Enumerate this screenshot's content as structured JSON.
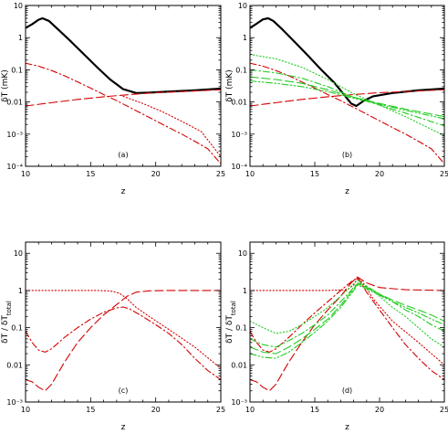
{
  "chart_data": [
    {
      "panel": "(a)",
      "type": "line",
      "ylabel": "δT  (mK)",
      "xlabel": "z",
      "xlim": [
        10,
        25
      ],
      "ylim": [
        0.0001,
        10
      ],
      "xscale": "linear",
      "yscale": "log",
      "xticks": [
        "10",
        "15",
        "20",
        "25"
      ],
      "yticks": [
        "10⁻⁴",
        "10⁻³",
        "0.01",
        "0.1",
        "1",
        "10"
      ],
      "series": [
        {
          "color": "#000000",
          "style": "solid",
          "x": [
            10,
            10.5,
            11,
            11.3,
            11.8,
            12.5,
            13.5,
            14.5,
            15.5,
            16.5,
            17.5,
            18.5,
            19.5,
            21,
            23,
            25
          ],
          "y": [
            2,
            2.6,
            3.6,
            4.0,
            3.3,
            1.8,
            0.75,
            0.3,
            0.12,
            0.05,
            0.025,
            0.019,
            0.0195,
            0.021,
            0.023,
            0.026
          ]
        },
        {
          "color": "#d40000",
          "style": "dashed",
          "x": [
            10,
            12,
            14,
            16,
            18,
            20,
            22,
            25
          ],
          "y": [
            0.0075,
            0.0095,
            0.012,
            0.0145,
            0.017,
            0.0195,
            0.021,
            0.024
          ]
        },
        {
          "color": "#d40000",
          "style": "dashdot",
          "x": [
            10,
            11,
            12,
            13,
            14,
            15,
            16,
            17,
            18,
            19,
            20,
            21,
            22,
            23,
            24,
            25
          ],
          "y": [
            0.16,
            0.13,
            0.095,
            0.065,
            0.042,
            0.027,
            0.017,
            0.011,
            0.0068,
            0.0042,
            0.0026,
            0.0016,
            0.001,
            0.0006,
            0.00035,
            0.00012
          ]
        },
        {
          "color": "#d40000",
          "style": "dotted",
          "x": [
            17.5,
            19,
            20.5,
            22,
            23.5,
            25
          ],
          "y": [
            0.015,
            0.009,
            0.005,
            0.0025,
            0.0012,
            0.0002
          ]
        }
      ]
    },
    {
      "panel": "(b)",
      "type": "line",
      "ylabel": "δT  (mK)",
      "xlabel": "z",
      "xlim": [
        10,
        25
      ],
      "ylim": [
        0.0001,
        10
      ],
      "xscale": "linear",
      "yscale": "log",
      "xticks": [
        "10",
        "15",
        "20",
        "25"
      ],
      "yticks": [
        "10⁻⁴",
        "10⁻³",
        "0.01",
        "0.1",
        "1",
        "10"
      ],
      "series": [
        {
          "color": "#000000",
          "style": "solid",
          "x": [
            10,
            10.5,
            11,
            11.4,
            11.8,
            12.5,
            13.5,
            14.5,
            15.5,
            16.5,
            17.2,
            17.8,
            18.2,
            18.8,
            19.5,
            21,
            23,
            25
          ],
          "y": [
            2,
            2.7,
            3.7,
            4.0,
            3.3,
            1.8,
            0.7,
            0.27,
            0.1,
            0.04,
            0.018,
            0.009,
            0.0075,
            0.011,
            0.015,
            0.019,
            0.023,
            0.026
          ]
        },
        {
          "color": "#d40000",
          "style": "dashed",
          "x": [
            10,
            12,
            14,
            16,
            18,
            20,
            22,
            25
          ],
          "y": [
            0.0075,
            0.0095,
            0.012,
            0.0145,
            0.017,
            0.0195,
            0.021,
            0.024
          ]
        },
        {
          "color": "#d40000",
          "style": "dashdot",
          "x": [
            10,
            11,
            12,
            13,
            14,
            15,
            16,
            17,
            18,
            19,
            20,
            21,
            22,
            23,
            24,
            25
          ],
          "y": [
            0.16,
            0.13,
            0.095,
            0.065,
            0.042,
            0.027,
            0.017,
            0.011,
            0.0068,
            0.0042,
            0.0026,
            0.0016,
            0.001,
            0.0006,
            0.00035,
            0.00012
          ]
        },
        {
          "color": "#22cc22",
          "style": "dotted",
          "x": [
            10,
            12,
            14,
            16,
            18,
            19,
            20,
            22,
            25
          ],
          "y": [
            0.3,
            0.22,
            0.12,
            0.05,
            0.018,
            0.012,
            0.008,
            0.0035,
            0.0009
          ]
        },
        {
          "color": "#22cc22",
          "style": "dashdot",
          "x": [
            10,
            12,
            14,
            16,
            18,
            20,
            22,
            25
          ],
          "y": [
            0.1,
            0.08,
            0.055,
            0.03,
            0.014,
            0.008,
            0.0045,
            0.0018
          ]
        },
        {
          "color": "#22cc22",
          "style": "dashed",
          "x": [
            10,
            12,
            14,
            16,
            18,
            20,
            22,
            25
          ],
          "y": [
            0.06,
            0.05,
            0.038,
            0.024,
            0.014,
            0.009,
            0.006,
            0.0035
          ]
        },
        {
          "color": "#22cc22",
          "style": "dashdotdot",
          "x": [
            10,
            12,
            14,
            16,
            18,
            20,
            22,
            25
          ],
          "y": [
            0.045,
            0.038,
            0.03,
            0.021,
            0.013,
            0.0085,
            0.0055,
            0.003
          ]
        }
      ]
    },
    {
      "panel": "(c)",
      "type": "line",
      "ylabel": "δT  / δT",
      "ylabel_sub": "total",
      "xlabel": "z",
      "xlim": [
        10,
        25
      ],
      "ylim": [
        0.001,
        20
      ],
      "xscale": "linear",
      "yscale": "log",
      "xticks": [
        "10",
        "15",
        "20",
        "25"
      ],
      "yticks": [
        "10⁻³",
        "0.01",
        "0.1",
        "1",
        "10"
      ],
      "series": [
        {
          "color": "#d40000",
          "style": "dotted",
          "x": [
            10,
            12,
            14,
            15.5,
            16.5,
            17.2,
            17.8,
            18.5,
            19.5,
            21,
            23,
            25
          ],
          "y": [
            1,
            1,
            1,
            1,
            0.97,
            0.85,
            0.6,
            0.35,
            0.2,
            0.09,
            0.03,
            0.008
          ]
        },
        {
          "color": "#d40000",
          "style": "dashed",
          "x": [
            10,
            10.5,
            11,
            11.5,
            12,
            13,
            14,
            15,
            16,
            17,
            17.8,
            18.5,
            19.5,
            21,
            23,
            25
          ],
          "y": [
            0.004,
            0.0035,
            0.0025,
            0.002,
            0.003,
            0.012,
            0.04,
            0.1,
            0.22,
            0.42,
            0.7,
            0.9,
            0.98,
            1,
            1,
            1
          ]
        },
        {
          "color": "#d40000",
          "style": "dashdot",
          "x": [
            10,
            10.5,
            11,
            11.5,
            12,
            13,
            14,
            15,
            16,
            17,
            17.5,
            18,
            19,
            20,
            21,
            22,
            23,
            24,
            25
          ],
          "y": [
            0.08,
            0.04,
            0.025,
            0.022,
            0.027,
            0.055,
            0.1,
            0.17,
            0.26,
            0.34,
            0.36,
            0.32,
            0.2,
            0.12,
            0.07,
            0.035,
            0.015,
            0.007,
            0.004
          ]
        }
      ]
    },
    {
      "panel": "(d)",
      "type": "line",
      "ylabel": "δT  / δT",
      "ylabel_sub": "total",
      "xlabel": "z",
      "xlim": [
        10,
        25
      ],
      "ylim": [
        0.001,
        20
      ],
      "xscale": "linear",
      "yscale": "log",
      "xticks": [
        "10",
        "15",
        "20",
        "25"
      ],
      "yticks": [
        "10⁻³",
        "0.01",
        "0.1",
        "1",
        "10"
      ],
      "series": [
        {
          "color": "#d40000",
          "style": "dotted",
          "x": [
            10,
            12,
            14,
            16,
            17.5,
            18,
            18.3,
            18.8,
            19.5,
            21,
            23,
            25
          ],
          "y": [
            1,
            1,
            1,
            1,
            1.05,
            1.4,
            2.2,
            1.5,
            0.6,
            0.15,
            0.04,
            0.01
          ]
        },
        {
          "color": "#d40000",
          "style": "dashed",
          "x": [
            10,
            10.5,
            11,
            11.5,
            12,
            13,
            14,
            15,
            16,
            17,
            17.8,
            18.3,
            19,
            20,
            22,
            25
          ],
          "y": [
            0.004,
            0.0035,
            0.0025,
            0.002,
            0.003,
            0.012,
            0.04,
            0.12,
            0.3,
            0.7,
            1.6,
            2.3,
            1.6,
            1.2,
            1.05,
            1
          ]
        },
        {
          "color": "#d40000",
          "style": "dashdot",
          "x": [
            10,
            10.5,
            11,
            11.5,
            12,
            13,
            14,
            15,
            16,
            17,
            17.8,
            18.3,
            19,
            20,
            21,
            22,
            23,
            24,
            25
          ],
          "y": [
            0.08,
            0.04,
            0.025,
            0.022,
            0.027,
            0.055,
            0.12,
            0.25,
            0.5,
            1,
            1.7,
            2.2,
            0.9,
            0.3,
            0.1,
            0.035,
            0.015,
            0.007,
            0.004
          ]
        },
        {
          "color": "#22cc22",
          "style": "dotted",
          "x": [
            10,
            11,
            12,
            13,
            14,
            15,
            16,
            17,
            17.8,
            18.3,
            19,
            20,
            21,
            22,
            23,
            24,
            25
          ],
          "y": [
            0.15,
            0.1,
            0.07,
            0.08,
            0.12,
            0.2,
            0.35,
            0.7,
            1.3,
            1.9,
            1.3,
            0.7,
            0.35,
            0.2,
            0.1,
            0.05,
            0.03
          ]
        },
        {
          "color": "#22cc22",
          "style": "dashdot",
          "x": [
            10,
            11,
            12,
            13,
            14,
            15,
            16,
            17,
            17.8,
            18.3,
            19,
            20,
            21,
            22,
            23,
            24,
            25
          ],
          "y": [
            0.05,
            0.035,
            0.03,
            0.045,
            0.07,
            0.12,
            0.22,
            0.5,
            1.0,
            1.6,
            1.3,
            0.8,
            0.5,
            0.3,
            0.2,
            0.12,
            0.08
          ]
        },
        {
          "color": "#22cc22",
          "style": "dashed",
          "x": [
            10,
            11,
            12,
            13,
            14,
            15,
            16,
            17,
            17.8,
            18.3,
            19,
            20,
            21,
            22,
            23,
            24,
            25
          ],
          "y": [
            0.03,
            0.022,
            0.02,
            0.03,
            0.05,
            0.09,
            0.17,
            0.4,
            0.9,
            1.5,
            1.2,
            0.8,
            0.55,
            0.4,
            0.3,
            0.22,
            0.15
          ]
        },
        {
          "color": "#22cc22",
          "style": "dashdotdot",
          "x": [
            10,
            11,
            12,
            13,
            14,
            15,
            16,
            17,
            17.8,
            18.3,
            19,
            20,
            21,
            22,
            23,
            24,
            25
          ],
          "y": [
            0.02,
            0.016,
            0.015,
            0.022,
            0.04,
            0.075,
            0.15,
            0.35,
            0.8,
            1.4,
            1.1,
            0.75,
            0.5,
            0.35,
            0.25,
            0.17,
            0.12
          ]
        }
      ]
    }
  ]
}
